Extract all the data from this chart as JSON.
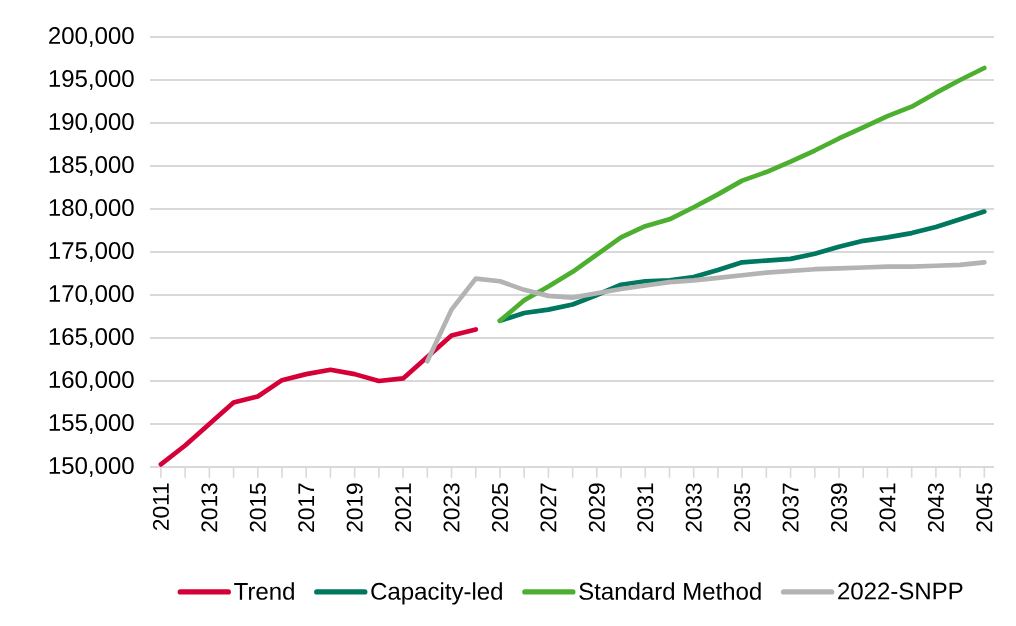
{
  "chart_data": {
    "type": "line",
    "categories": [
      "2011",
      null,
      "2013",
      null,
      "2015",
      null,
      "2017",
      null,
      "2019",
      null,
      "2021",
      null,
      "2023",
      null,
      "2025",
      null,
      "2027",
      null,
      "2029",
      null,
      "2031",
      null,
      "2033",
      null,
      "2035",
      null,
      "2037",
      null,
      "2039",
      null,
      "2041",
      null,
      "2043",
      null,
      "2045"
    ],
    "series": [
      {
        "name": "Trend",
        "color": "#d50037",
        "values": [
          150300,
          152500,
          155000,
          157500,
          158200,
          160100,
          160800,
          161300,
          160800,
          160000,
          160300,
          162800,
          165300,
          166000,
          null,
          null,
          null,
          null,
          null,
          null,
          null,
          null,
          null,
          null,
          null,
          null,
          null,
          null,
          null,
          null,
          null,
          null,
          null,
          null,
          null
        ]
      },
      {
        "name": "Capacity-led",
        "color": "#00775f",
        "values": [
          null,
          null,
          null,
          null,
          null,
          null,
          null,
          null,
          null,
          null,
          null,
          null,
          null,
          null,
          167000,
          167900,
          168300,
          168900,
          170000,
          171200,
          171600,
          171700,
          172100,
          172900,
          173800,
          174000,
          174200,
          174800,
          175600,
          176300,
          176700,
          177200,
          177900,
          178800,
          179700
        ]
      },
      {
        "name": "Standard Method",
        "color": "#4caf2f",
        "values": [
          null,
          null,
          null,
          null,
          null,
          null,
          null,
          null,
          null,
          null,
          null,
          null,
          null,
          null,
          167000,
          169400,
          171000,
          172700,
          174700,
          176700,
          178000,
          178800,
          180200,
          181700,
          183300,
          184300,
          185500,
          186800,
          188200,
          189500,
          190800,
          191900,
          193500,
          195000,
          196400
        ]
      },
      {
        "name": "2022-SNPP",
        "color": "#b3b3b3",
        "values": [
          null,
          null,
          null,
          null,
          null,
          null,
          null,
          null,
          null,
          null,
          null,
          162300,
          168300,
          171900,
          171600,
          170600,
          169900,
          169700,
          170200,
          170700,
          171100,
          171500,
          171700,
          172000,
          172300,
          172600,
          172800,
          173000,
          173100,
          173200,
          173300,
          173300,
          173400,
          173500,
          173800
        ]
      }
    ],
    "ylim": [
      150000,
      200000
    ],
    "yticks": [
      {
        "value": 150000,
        "label": "150,000"
      },
      {
        "value": 155000,
        "label": "155,000"
      },
      {
        "value": 160000,
        "label": "160,000"
      },
      {
        "value": 165000,
        "label": "165,000"
      },
      {
        "value": 170000,
        "label": "170,000"
      },
      {
        "value": 175000,
        "label": "175,000"
      },
      {
        "value": 180000,
        "label": "180,000"
      },
      {
        "value": 185000,
        "label": "185,000"
      },
      {
        "value": 190000,
        "label": "190,000"
      },
      {
        "value": 195000,
        "label": "195,000"
      },
      {
        "value": 200000,
        "label": "200,000"
      }
    ],
    "grid": "y",
    "legend": "bottom",
    "marker": "none",
    "line_style": "solid"
  }
}
